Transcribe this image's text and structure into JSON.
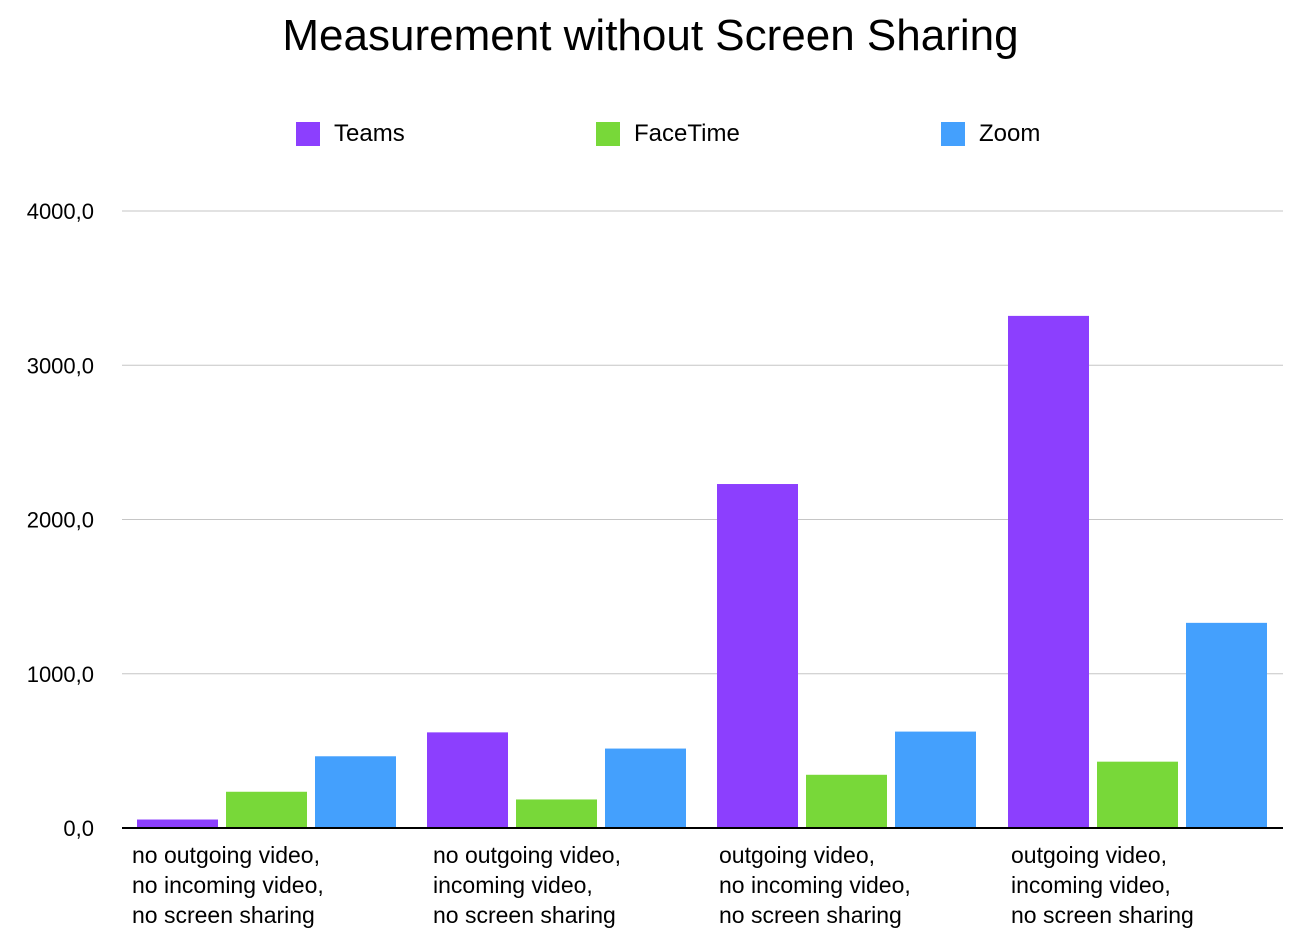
{
  "chart_data": {
    "type": "bar",
    "title": "Measurement without Screen Sharing",
    "xlabel": "",
    "ylabel": "",
    "ylim": [
      0,
      4000
    ],
    "y_ticks": [
      "0,0",
      "1000,0",
      "2000,0",
      "3000,0",
      "4000,0"
    ],
    "y_tick_values": [
      0,
      1000,
      2000,
      3000,
      4000
    ],
    "grid": true,
    "legend_position": "top",
    "categories": [
      [
        "no outgoing video,",
        "no incoming video,",
        "no screen sharing"
      ],
      [
        "no outgoing video,",
        "incoming video,",
        "no screen sharing"
      ],
      [
        "outgoing video,",
        "no incoming video,",
        "no screen sharing"
      ],
      [
        "outgoing video,",
        "incoming video,",
        "no screen sharing"
      ]
    ],
    "series": [
      {
        "name": "Teams",
        "color": "#8c3ffe",
        "values": [
          55,
          620,
          2230,
          3320
        ]
      },
      {
        "name": "FaceTime",
        "color": "#78d839",
        "values": [
          235,
          185,
          345,
          430
        ]
      },
      {
        "name": "Zoom",
        "color": "#44a0fd",
        "values": [
          465,
          515,
          625,
          1330
        ]
      }
    ]
  }
}
